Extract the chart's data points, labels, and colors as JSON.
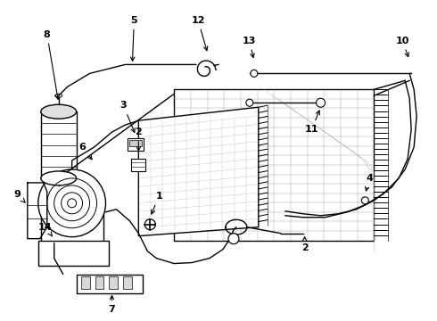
{
  "bg_color": "#ffffff",
  "line_color": "#000000",
  "lw": 1.0,
  "fig_w": 4.9,
  "fig_h": 3.6,
  "dpi": 100
}
